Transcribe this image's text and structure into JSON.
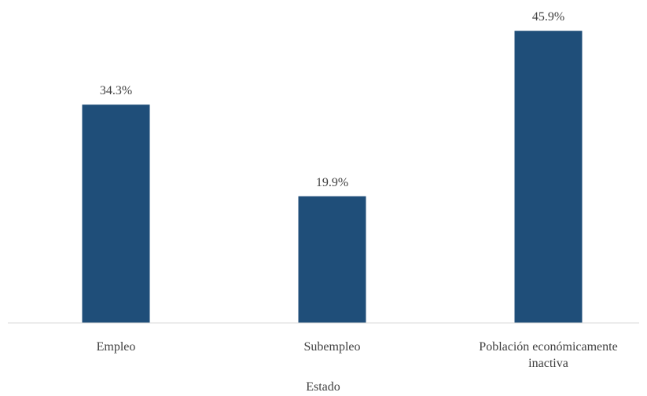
{
  "chart_data": {
    "type": "bar",
    "categories": [
      "Empleo",
      "Subempleo",
      "Población económicamente inactiva"
    ],
    "category_label_lines": [
      [
        "Empleo"
      ],
      [
        "Subempleo"
      ],
      [
        "Población económicamente",
        "inactiva"
      ]
    ],
    "values": [
      34.3,
      19.9,
      45.9
    ],
    "data_labels": [
      "34.3%",
      "19.9%",
      "45.9%"
    ],
    "title": "",
    "xlabel": "Estado",
    "ylabel": "",
    "ylim": [
      0,
      50
    ],
    "grid": false,
    "legend": "none",
    "bar_color": "#1f4e79",
    "axis_color": "#d9d9d9",
    "text_color": "#404040"
  }
}
